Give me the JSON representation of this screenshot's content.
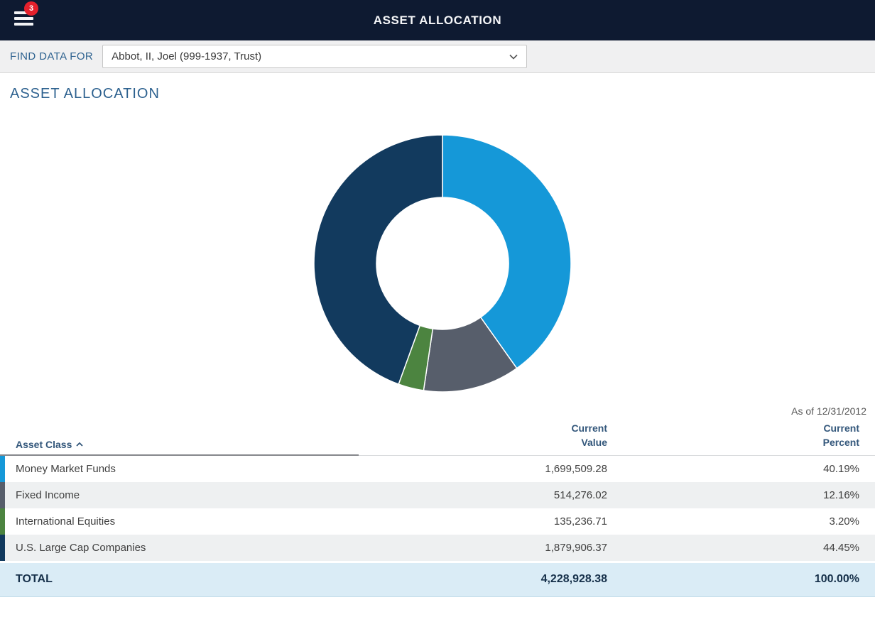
{
  "header": {
    "title": "ASSET ALLOCATION",
    "menu_badge_count": "3"
  },
  "find_data": {
    "label": "FIND DATA FOR",
    "selected_option": "Abbot, II, Joel (999-1937, Trust)"
  },
  "section": {
    "title": "ASSET ALLOCATION",
    "as_of": "As of 12/31/2012"
  },
  "chart_data": {
    "type": "pie",
    "subtype": "donut",
    "title": "ASSET ALLOCATION",
    "as_of": "As of 12/31/2012",
    "categories": [
      "Money Market Funds",
      "Fixed Income",
      "International Equities",
      "U.S. Large Cap Companies"
    ],
    "values": [
      40.19,
      12.16,
      3.2,
      44.45
    ],
    "colors": [
      "#1598d8",
      "#575e6b",
      "#4c8440",
      "#123a5e"
    ],
    "current_values": [
      1699509.28,
      514276.02,
      135236.71,
      1879906.37
    ],
    "total_value": 4228928.38,
    "total_percent": 100.0,
    "start_angle_deg": 0,
    "direction": "clockwise",
    "legend_position": "none"
  },
  "table": {
    "headers": {
      "asset_class": "Asset Class",
      "current_value": "Current Value",
      "current_percent": "Current Percent"
    },
    "sort": {
      "column": "asset_class",
      "order": "asc"
    },
    "rows": [
      {
        "asset_class": "Money Market Funds",
        "current_value": "1,699,509.28",
        "current_percent": "40.19%",
        "color": "#1598d8"
      },
      {
        "asset_class": "Fixed Income",
        "current_value": "514,276.02",
        "current_percent": "12.16%",
        "color": "#575e6b"
      },
      {
        "asset_class": "International Equities",
        "current_value": "135,236.71",
        "current_percent": "3.20%",
        "color": "#4c8440"
      },
      {
        "asset_class": "U.S. Large Cap Companies",
        "current_value": "1,879,906.37",
        "current_percent": "44.45%",
        "color": "#123a5e"
      }
    ],
    "total": {
      "label": "TOTAL",
      "current_value": "4,228,928.38",
      "current_percent": "100.00%"
    }
  }
}
